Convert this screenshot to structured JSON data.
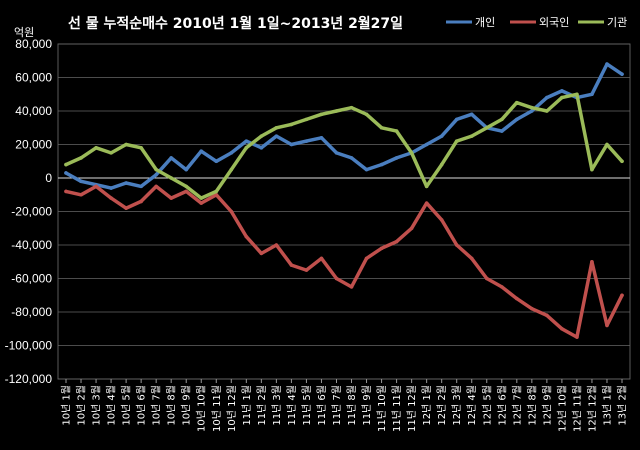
{
  "chart_data": {
    "type": "line",
    "title": "선 물 누적순매수 2010년 1월 1일~2013년 2월27일",
    "yunit": "억원",
    "ylim": [
      -120000,
      80000
    ],
    "yticks": [
      80000,
      60000,
      40000,
      20000,
      0,
      -20000,
      -40000,
      -60000,
      -80000,
      -100000,
      -120000
    ],
    "ytick_labels": [
      "80,000",
      "60,000",
      "40,000",
      "20,000",
      "0",
      "-20,000",
      "-40,000",
      "-60,000",
      "-80,000",
      "-100,000",
      "-120,000"
    ],
    "grid": true,
    "legend_position": "top-right",
    "categories": [
      "10년 1월",
      "10년 2월",
      "10년 3월",
      "10년 4월",
      "10년 5월",
      "10년 6월",
      "10년 7월",
      "10년 8월",
      "10년 9월",
      "10년 10월",
      "10년 11월",
      "10년 12월",
      "11년 1월",
      "11년 2월",
      "11년 3월",
      "11년 4월",
      "11년 5월",
      "11년 6월",
      "11년 7월",
      "11년 8월",
      "11년 9월",
      "11년 10월",
      "11년 11월",
      "11년 12월",
      "12년 1월",
      "12년 2월",
      "12년 3월",
      "12년 4월",
      "12년 5월",
      "12년 6월",
      "12년 7월",
      "12년 8월",
      "12년 9월",
      "12년 10월",
      "12년 11월",
      "12년 12월",
      "13년 1월",
      "13년 2월"
    ],
    "series": [
      {
        "name": "개인",
        "color": "#4a7ebf",
        "values": [
          3000,
          -2000,
          -4000,
          -6000,
          -3000,
          -5000,
          2000,
          12000,
          5000,
          16000,
          10000,
          15000,
          22000,
          18000,
          25000,
          20000,
          22000,
          24000,
          15000,
          12000,
          5000,
          8000,
          12000,
          15000,
          20000,
          25000,
          35000,
          38000,
          30000,
          28000,
          35000,
          40000,
          48000,
          52000,
          48000,
          50000,
          68000,
          62000
        ]
      },
      {
        "name": "외국인",
        "color": "#c0504d",
        "values": [
          -8000,
          -10000,
          -5000,
          -12000,
          -18000,
          -14000,
          -5000,
          -12000,
          -8000,
          -15000,
          -10000,
          -20000,
          -35000,
          -45000,
          -40000,
          -52000,
          -55000,
          -48000,
          -60000,
          -65000,
          -48000,
          -42000,
          -38000,
          -30000,
          -15000,
          -25000,
          -40000,
          -48000,
          -60000,
          -65000,
          -72000,
          -78000,
          -82000,
          -90000,
          -95000,
          -50000,
          -88000,
          -70000
        ]
      },
      {
        "name": "기관",
        "color": "#9bbb59",
        "values": [
          8000,
          12000,
          18000,
          15000,
          20000,
          18000,
          5000,
          0,
          -5000,
          -12000,
          -8000,
          5000,
          18000,
          25000,
          30000,
          32000,
          35000,
          38000,
          40000,
          42000,
          38000,
          30000,
          28000,
          15000,
          -5000,
          8000,
          22000,
          25000,
          30000,
          35000,
          45000,
          42000,
          40000,
          48000,
          50000,
          5000,
          20000,
          10000
        ]
      }
    ]
  }
}
